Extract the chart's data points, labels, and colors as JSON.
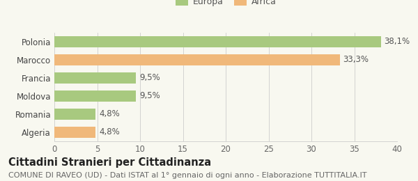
{
  "categories": [
    "Polonia",
    "Marocco",
    "Francia",
    "Moldova",
    "Romania",
    "Algeria"
  ],
  "values": [
    38.1,
    33.3,
    9.5,
    9.5,
    4.8,
    4.8
  ],
  "labels": [
    "38,1%",
    "33,3%",
    "9,5%",
    "9,5%",
    "4,8%",
    "4,8%"
  ],
  "colors": [
    "#a8c97f",
    "#f0b87a",
    "#a8c97f",
    "#a8c97f",
    "#a8c97f",
    "#f0b87a"
  ],
  "legend_entries": [
    "Europa",
    "Africa"
  ],
  "legend_colors": [
    "#a8c97f",
    "#f0b87a"
  ],
  "xlim": [
    0,
    40
  ],
  "xticks": [
    0,
    5,
    10,
    15,
    20,
    25,
    30,
    35,
    40
  ],
  "title": "Cittadini Stranieri per Cittadinanza",
  "subtitle": "COMUNE DI RAVEO (UD) - Dati ISTAT al 1° gennaio di ogni anno - Elaborazione TUTTITALIA.IT",
  "bg_color": "#f8f8f0",
  "bar_height": 0.6,
  "label_fontsize": 8.5,
  "title_fontsize": 10.5,
  "subtitle_fontsize": 8.0,
  "axis_label_fontsize": 8.5,
  "ytick_fontsize": 8.5,
  "legend_fontsize": 9.0
}
